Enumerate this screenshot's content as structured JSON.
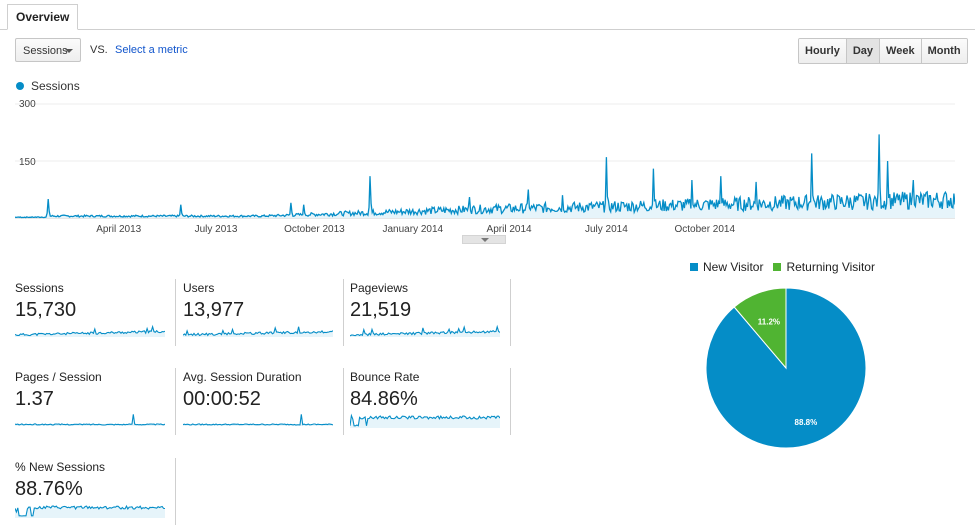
{
  "tabs": [
    {
      "label": "Overview"
    }
  ],
  "controls": {
    "metric_select": "Sessions",
    "vs_label": "VS.",
    "select_metric_link": "Select a metric",
    "time_buttons": [
      {
        "label": "Hourly",
        "active": false
      },
      {
        "label": "Day",
        "active": true
      },
      {
        "label": "Week",
        "active": false
      },
      {
        "label": "Month",
        "active": false
      }
    ]
  },
  "colors": {
    "primary": "#058dc7",
    "fill": "#e6f4fa",
    "secondary": "#50b432",
    "grid": "#eeeeee"
  },
  "chart_data": [
    {
      "type": "area",
      "series": [
        {
          "name": "Sessions"
        }
      ],
      "ylim": [
        0,
        300
      ],
      "yticks": [
        "300",
        "150"
      ],
      "x_labels": [
        "April 2013",
        "July 2013",
        "October 2013",
        "January 2014",
        "April 2014",
        "July 2014",
        "October 2014"
      ],
      "spikes": [
        {
          "day": 31,
          "value": 50
        },
        {
          "day": 155,
          "value": 35
        },
        {
          "day": 258,
          "value": 40
        },
        {
          "day": 270,
          "value": 35
        },
        {
          "day": 332,
          "value": 110
        },
        {
          "day": 425,
          "value": 55
        },
        {
          "day": 480,
          "value": 75
        },
        {
          "day": 512,
          "value": 60
        },
        {
          "day": 553,
          "value": 160
        },
        {
          "day": 597,
          "value": 130
        },
        {
          "day": 633,
          "value": 100
        },
        {
          "day": 660,
          "value": 110
        },
        {
          "day": 693,
          "value": 95
        },
        {
          "day": 745,
          "value": 170
        },
        {
          "day": 808,
          "value": 220
        },
        {
          "day": 816,
          "value": 150
        },
        {
          "day": 840,
          "value": 100
        }
      ]
    },
    {
      "type": "pie",
      "slices": [
        {
          "label": "New Visitor",
          "value": 88.8,
          "display": "88.8%"
        },
        {
          "label": "Returning Visitor",
          "value": 11.2,
          "display": "11.2%"
        }
      ]
    }
  ],
  "summary_tiles": [
    {
      "label": "Sessions",
      "value": "15,730"
    },
    {
      "label": "Users",
      "value": "13,977"
    },
    {
      "label": "Pageviews",
      "value": "21,519"
    },
    {
      "label": "Pages / Session",
      "value": "1.37"
    },
    {
      "label": "Avg. Session Duration",
      "value": "00:00:52"
    },
    {
      "label": "Bounce Rate",
      "value": "84.86%"
    },
    {
      "label": "% New Sessions",
      "value": "88.76%"
    }
  ]
}
